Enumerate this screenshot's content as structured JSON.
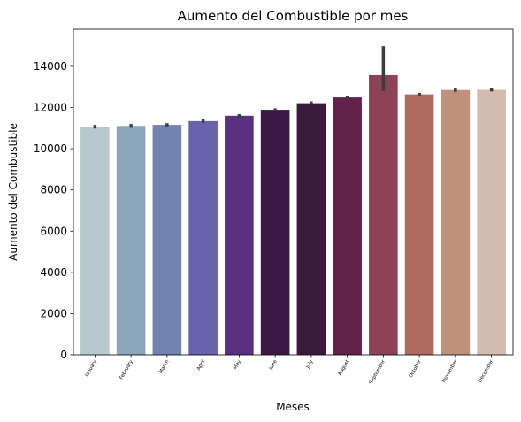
{
  "chart_data": {
    "type": "bar",
    "title": "Aumento del Combustible por mes",
    "xlabel": "Meses",
    "ylabel": "Aumento del Combustible",
    "categories": [
      "January",
      "February",
      "March",
      "April",
      "May",
      "June",
      "July",
      "August",
      "September",
      "October",
      "November",
      "December"
    ],
    "values": [
      11070,
      11110,
      11160,
      11340,
      11600,
      11890,
      12210,
      12490,
      13570,
      12640,
      12850,
      12860
    ],
    "error_low": [
      10980,
      11020,
      11080,
      11250,
      11520,
      11830,
      12130,
      12420,
      12790,
      12570,
      12760,
      12780
    ],
    "error_high": [
      11160,
      11200,
      11240,
      11420,
      11680,
      11960,
      12300,
      12560,
      14980,
      12710,
      12940,
      12950
    ],
    "colors": [
      "#b8c8cf",
      "#8ba6bb",
      "#7183b2",
      "#6762a9",
      "#5a2f82",
      "#3c1847",
      "#3b1a3d",
      "#62234b",
      "#8e4255",
      "#ad6b62",
      "#bf907c",
      "#d1bcaf"
    ],
    "ylim": [
      0,
      15800
    ],
    "yticks": [
      0,
      2000,
      4000,
      6000,
      8000,
      10000,
      12000,
      14000
    ],
    "grid": false,
    "legend": "none"
  }
}
